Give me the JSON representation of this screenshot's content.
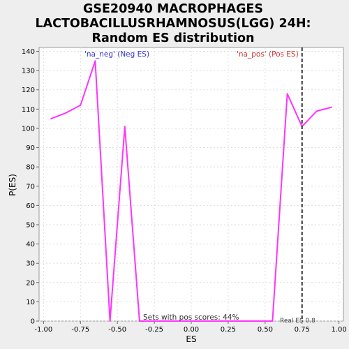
{
  "chart_data": {
    "type": "line",
    "title": [
      "GSE20940 MACROPHAGES",
      "LACTOBACILLUSRHAMNOSUS(LGG) 24H:",
      "Random ES distribution"
    ],
    "xlabel": "ES",
    "ylabel": "P(ES)",
    "xlim": [
      -1.03,
      1.03
    ],
    "ylim": [
      0,
      142
    ],
    "x_ticks": [
      -1.0,
      -0.75,
      -0.5,
      -0.25,
      0.0,
      0.25,
      0.5,
      0.75,
      1.0
    ],
    "x_tick_labels": [
      "-1.00",
      "-0.75",
      "-0.50",
      "-0.25",
      "0.00",
      "0.25",
      "0.50",
      "0.75",
      "1.00"
    ],
    "y_ticks": [
      0,
      10,
      20,
      30,
      40,
      50,
      60,
      70,
      80,
      90,
      100,
      110,
      120,
      130,
      140
    ],
    "grid": true,
    "series": [
      {
        "color": "#ff33ff",
        "x": [
          -0.95,
          -0.85,
          -0.75,
          -0.65,
          -0.55,
          -0.45,
          -0.35,
          -0.25,
          -0.15,
          -0.05,
          0.05,
          0.15,
          0.25,
          0.35,
          0.45,
          0.55,
          0.65,
          0.75,
          0.85,
          0.95
        ],
        "y": [
          105,
          108,
          112,
          135,
          0,
          101,
          0,
          0,
          0,
          0,
          0,
          0,
          0,
          0,
          0,
          0,
          118,
          101,
          109,
          111
        ]
      }
    ],
    "vline": {
      "x": 0.75,
      "label": "Real ES 0.8",
      "color": "#333333"
    },
    "annotations": {
      "neg": {
        "text": "'na_neg' (Neg ES)",
        "color": "#3333cc"
      },
      "pos": {
        "text": "'na_pos' (Pos ES)",
        "color": "#cc3333"
      },
      "footer": "Sets with pos scores: 44%"
    }
  }
}
